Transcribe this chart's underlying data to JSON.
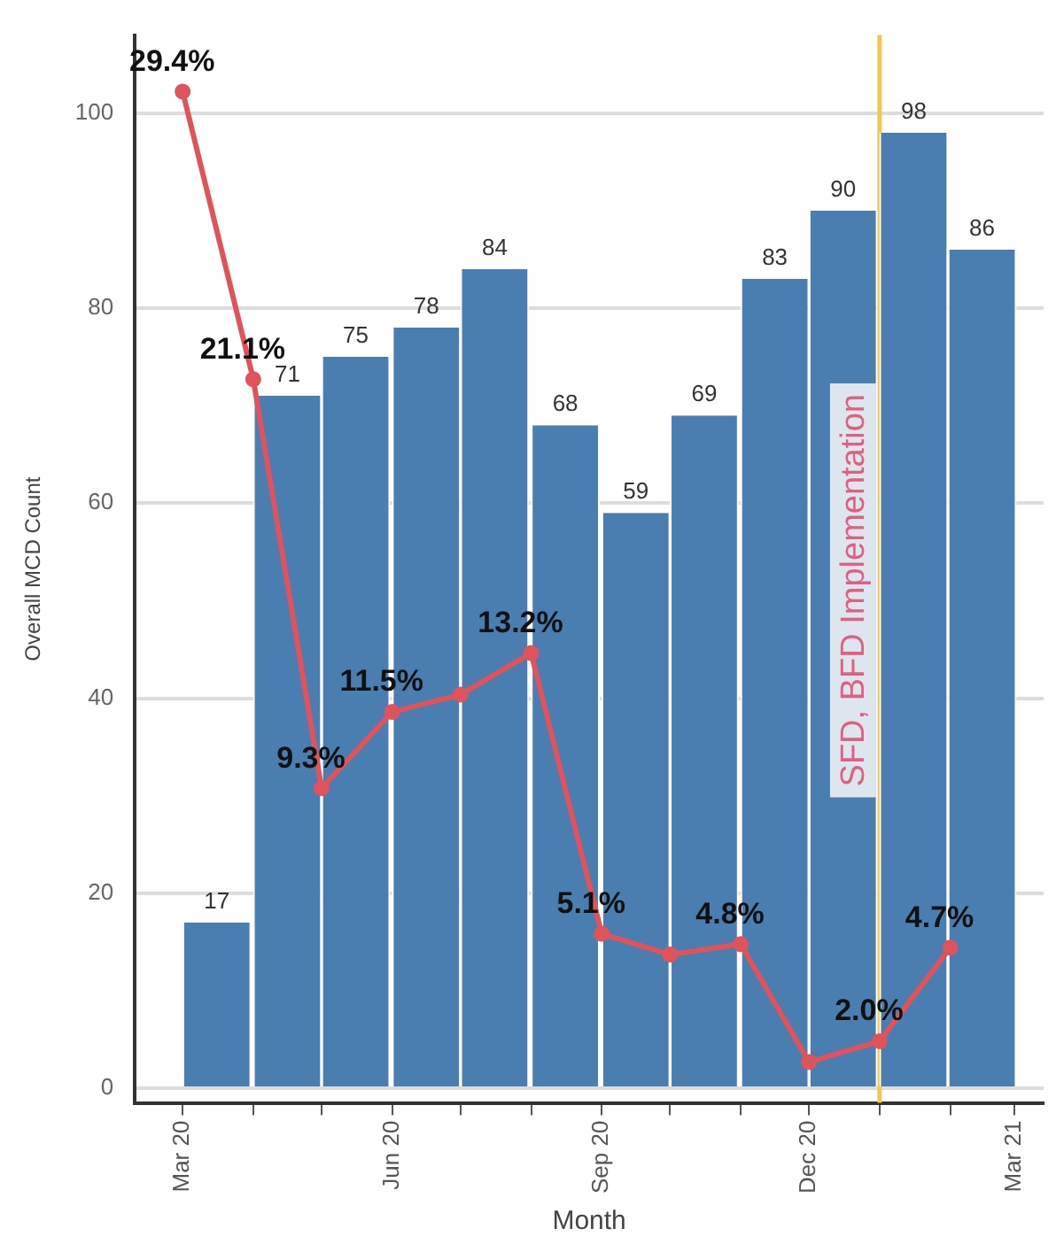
{
  "chart_data": {
    "type": "bar",
    "xlabel": "Month",
    "ylabel": "Overall MCD Count",
    "xlim": [
      "2020-02-09",
      "2021-03-14"
    ],
    "xticks": [
      {
        "value": "2020-03-01",
        "label": "Mar 20"
      },
      {
        "value": "2020-04-01",
        "label": null
      },
      {
        "value": "2020-05-01",
        "label": null
      },
      {
        "value": "2020-06-01",
        "label": "Jun 20"
      },
      {
        "value": "2020-07-01",
        "label": null
      },
      {
        "value": "2020-08-01",
        "label": null
      },
      {
        "value": "2020-09-01",
        "label": "Sep 20"
      },
      {
        "value": "2020-10-01",
        "label": null
      },
      {
        "value": "2020-11-01",
        "label": null
      },
      {
        "value": "2020-12-01",
        "label": "Dec 20"
      },
      {
        "value": "2021-01-01",
        "label": null
      },
      {
        "value": "2021-02-01",
        "label": null
      },
      {
        "value": "2021-03-01",
        "label": "Mar 21"
      }
    ],
    "ylim": [
      -1.5,
      108
    ],
    "yticks": [
      0,
      20,
      40,
      60,
      80,
      100
    ],
    "y2lim": [
      0.22,
      31.03
    ],
    "grid": "y",
    "legend": false,
    "series": [
      {
        "color": "#4a7db0",
        "x": [
          "2020-03-16",
          "2020-04-16",
          "2020-05-16",
          "2020-06-16",
          "2020-07-16",
          "2020-08-16",
          "2020-09-16",
          "2020-10-16",
          "2020-11-16",
          "2020-12-16",
          "2021-01-16",
          "2021-02-15"
        ],
        "values": [
          17,
          71,
          75,
          78,
          84,
          68,
          59,
          69,
          83,
          90,
          98,
          86
        ],
        "value_labels": [
          "17",
          "71",
          "75",
          "78",
          "84",
          "68",
          "59",
          "69",
          "83",
          "90",
          "98",
          "86"
        ]
      },
      {
        "type": "line",
        "axis": "y2",
        "color": "#e0525c",
        "marker": "circle",
        "x": [
          "2020-03-01",
          "2020-04-01",
          "2020-05-01",
          "2020-06-01",
          "2020-07-01",
          "2020-08-01",
          "2020-09-01",
          "2020-10-01",
          "2020-11-01",
          "2020-12-01",
          "2021-01-01",
          "2021-02-01"
        ],
        "values": [
          29.4,
          21.1,
          9.3,
          11.5,
          12.0,
          13.2,
          5.1,
          4.5,
          4.8,
          1.4,
          2.0,
          4.7
        ],
        "value_labels": [
          "29.4%",
          "21.1%",
          "9.3%",
          "11.5%",
          null,
          "13.2%",
          "5.1%",
          null,
          "4.8%",
          null,
          "2.0%",
          "4.7%"
        ]
      }
    ],
    "ref_lines": [
      {
        "axis": "x",
        "value": "2021-01-01",
        "label": "SFD, BFD Implementation",
        "color": "#f0c850"
      }
    ]
  }
}
